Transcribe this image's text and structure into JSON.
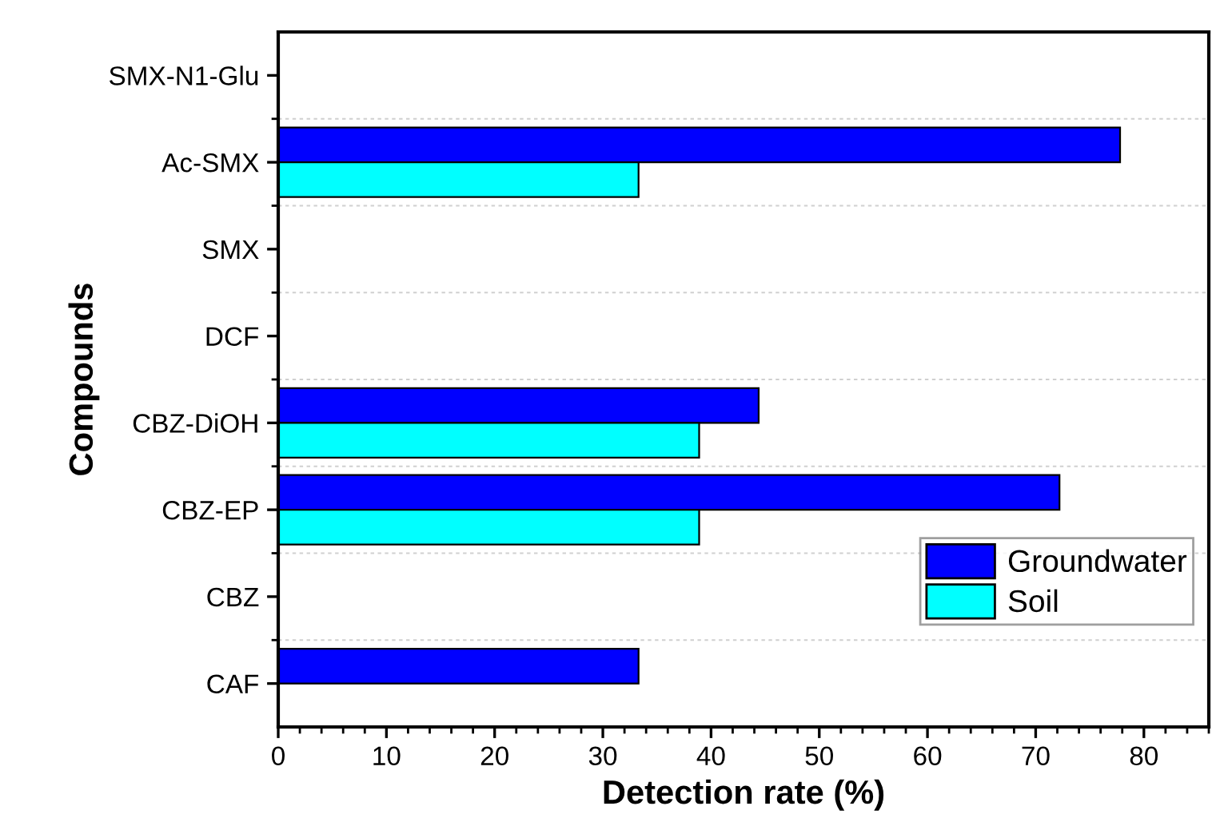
{
  "chart_data": {
    "type": "bar",
    "orientation": "horizontal",
    "xlabel": "Detection rate (%)",
    "ylabel": "Compounds",
    "categories": [
      "SMX-N1-Glu",
      "Ac-SMX",
      "SMX",
      "DCF",
      "CBZ-DiOH",
      "CBZ-EP",
      "CBZ",
      "CAF"
    ],
    "series": [
      {
        "name": "Groundwater",
        "color": "#0000ff",
        "values": [
          null,
          77.8,
          null,
          null,
          44.4,
          72.2,
          null,
          33.3
        ]
      },
      {
        "name": "Soil",
        "color": "#00ffff",
        "values": [
          null,
          33.3,
          null,
          null,
          38.9,
          38.9,
          null,
          null
        ]
      }
    ],
    "xlim": [
      0,
      86
    ],
    "xticks": [
      0,
      10,
      20,
      30,
      40,
      50,
      60,
      70,
      80
    ],
    "grid": "y",
    "legend": "bottom right"
  }
}
